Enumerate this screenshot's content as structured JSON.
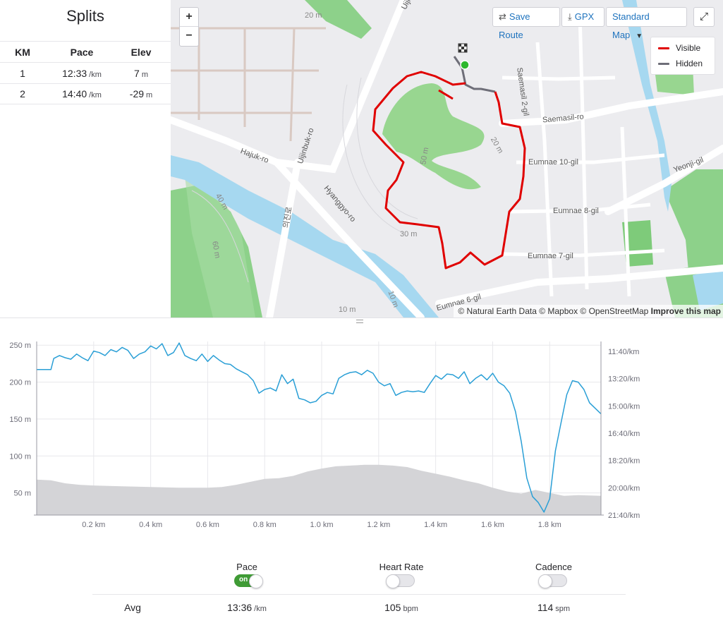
{
  "splits": {
    "title": "Splits",
    "headers": [
      "KM",
      "Pace",
      "Elev"
    ],
    "rows": [
      {
        "km": "1",
        "pace": "12:33",
        "pace_unit": "/km",
        "elev": "7",
        "elev_unit": "m"
      },
      {
        "km": "2",
        "pace": "14:40",
        "pace_unit": "/km",
        "elev": "-29",
        "elev_unit": "m"
      }
    ]
  },
  "map": {
    "zoom_in": "+",
    "zoom_out": "−",
    "save_route": "Save Route",
    "gpx": "GPX",
    "map_type": "Standard Map",
    "legend": {
      "visible": "Visible",
      "hidden": "Hidden",
      "visible_color": "#e00000",
      "hidden_color": "#6e6e78"
    },
    "attribution": {
      "text": "© Natural Earth Data © Mapbox © OpenStreetMap",
      "improve": "Improve this map"
    },
    "labels": {
      "uijinbuk": "Uijinbuk-ro",
      "hajuk": "Hajuk-ro",
      "uijinbuk_ro": "Uijinbuk-ro",
      "hyanggyo": "Hyanggyo-ro",
      "korean": "의진로",
      "saemasil2": "Saemasil 2-gil",
      "saemasil": "Saemasil-ro",
      "eumnae10": "Eumnae 10-gil",
      "eumnae8": "Eumnae 8-gil",
      "eumnae7": "Eumnae 7-gil",
      "eumnae6": "Eumnae 6-gil",
      "yeonji": "Yeonji-gil",
      "m20a": "20 m",
      "m20b": "20 m",
      "m30": "30 m",
      "m50": "50 m",
      "m60": "60 m",
      "m10a": "10 m",
      "m10b": "10 m",
      "m40": "40 m"
    }
  },
  "chart_data": {
    "type": "line",
    "x_unit": "km",
    "x_ticks": [
      "0.2 km",
      "0.4 km",
      "0.6 km",
      "0.8 km",
      "1.0 km",
      "1.2 km",
      "1.4 km",
      "1.6 km",
      "1.8 km"
    ],
    "x_tick_values": [
      0.2,
      0.4,
      0.6,
      0.8,
      1.0,
      1.2,
      1.4,
      1.6,
      1.8
    ],
    "xlim": [
      0,
      1.98
    ],
    "left_axis": {
      "ticks": [
        "250 m",
        "200 m",
        "150 m",
        "100 m",
        "50 m"
      ],
      "tick_values": [
        250,
        200,
        150,
        100,
        50
      ],
      "ylim": [
        20,
        255
      ]
    },
    "right_axis": {
      "ticks": [
        "11:40/km",
        "13:20/km",
        "15:00/km",
        "16:40/km",
        "18:20/km",
        "20:00/km",
        "21:40/km"
      ]
    },
    "grid": true,
    "series": [
      {
        "kind": "elevation-area",
        "color": "#d4d4d7",
        "x": [
          0,
          0.05,
          0.1,
          0.15,
          0.2,
          0.3,
          0.4,
          0.5,
          0.6,
          0.65,
          0.7,
          0.75,
          0.8,
          0.85,
          0.9,
          0.95,
          1.0,
          1.05,
          1.1,
          1.15,
          1.2,
          1.25,
          1.3,
          1.35,
          1.4,
          1.45,
          1.5,
          1.55,
          1.6,
          1.65,
          1.7,
          1.75,
          1.8,
          1.85,
          1.9,
          1.98
        ],
        "values": [
          68,
          67,
          63,
          61,
          60,
          59,
          58,
          57,
          57,
          58,
          61,
          65,
          69,
          70,
          73,
          79,
          83,
          86,
          87,
          88,
          88,
          87,
          85,
          80,
          76,
          72,
          67,
          63,
          57,
          52,
          49,
          54,
          50,
          46,
          47,
          46
        ]
      },
      {
        "kind": "pace-line",
        "color": "#2a9fd6",
        "x": [
          0,
          0.05,
          0.06,
          0.08,
          0.1,
          0.12,
          0.14,
          0.16,
          0.18,
          0.2,
          0.22,
          0.24,
          0.26,
          0.28,
          0.3,
          0.32,
          0.34,
          0.36,
          0.38,
          0.4,
          0.42,
          0.44,
          0.46,
          0.48,
          0.5,
          0.52,
          0.54,
          0.56,
          0.58,
          0.6,
          0.62,
          0.64,
          0.66,
          0.68,
          0.7,
          0.72,
          0.74,
          0.76,
          0.78,
          0.8,
          0.82,
          0.84,
          0.86,
          0.88,
          0.9,
          0.92,
          0.94,
          0.96,
          0.98,
          1.0,
          1.02,
          1.04,
          1.06,
          1.08,
          1.1,
          1.12,
          1.14,
          1.16,
          1.18,
          1.2,
          1.22,
          1.24,
          1.26,
          1.28,
          1.3,
          1.32,
          1.34,
          1.36,
          1.38,
          1.4,
          1.42,
          1.44,
          1.46,
          1.48,
          1.5,
          1.52,
          1.54,
          1.56,
          1.58,
          1.6,
          1.62,
          1.64,
          1.66,
          1.68,
          1.7,
          1.72,
          1.74,
          1.76,
          1.78,
          1.8,
          1.82,
          1.84,
          1.86,
          1.88,
          1.9,
          1.92,
          1.94,
          1.98
        ],
        "values": [
          217,
          217,
          232,
          236,
          233,
          231,
          238,
          233,
          229,
          242,
          240,
          236,
          244,
          241,
          247,
          243,
          232,
          238,
          241,
          249,
          245,
          252,
          236,
          240,
          253,
          236,
          232,
          229,
          238,
          228,
          236,
          230,
          225,
          224,
          218,
          214,
          210,
          202,
          185,
          190,
          192,
          188,
          210,
          198,
          204,
          178,
          176,
          172,
          174,
          182,
          186,
          184,
          205,
          210,
          213,
          214,
          210,
          216,
          212,
          200,
          195,
          198,
          182,
          186,
          188,
          187,
          188,
          186,
          198,
          209,
          204,
          211,
          210,
          205,
          214,
          198,
          205,
          210,
          203,
          212,
          200,
          195,
          185,
          160,
          120,
          70,
          45,
          37,
          24,
          42,
          107,
          145,
          183,
          202,
          200,
          190,
          172,
          157
        ]
      }
    ]
  },
  "stats": {
    "pace_label": "Pace",
    "pace_toggle": "on",
    "hr_label": "Heart Rate",
    "cadence_label": "Cadence",
    "avg_label": "Avg",
    "avg_pace": "13:36",
    "avg_pace_unit": "/km",
    "avg_hr": "105",
    "avg_hr_unit": "bpm",
    "avg_cadence": "114",
    "avg_cadence_unit": "spm"
  }
}
